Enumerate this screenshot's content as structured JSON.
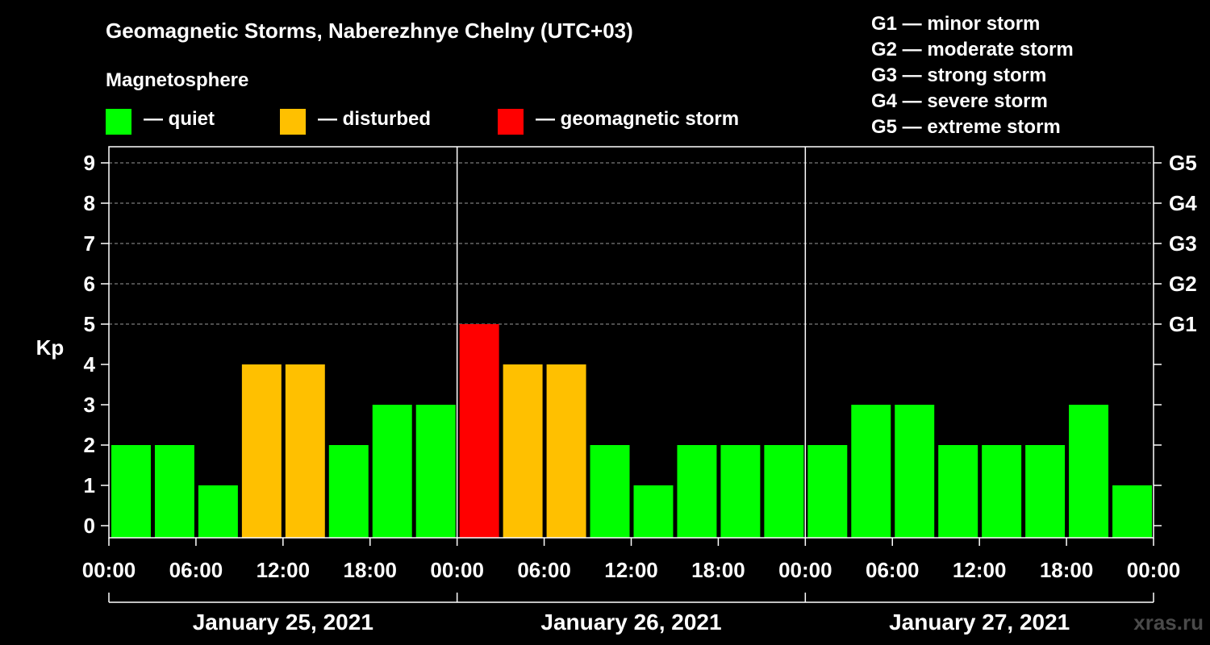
{
  "chart_data": {
    "type": "bar",
    "title": "Geomagnetic Storms, Naberezhnye Chelny (UTC+03)",
    "subtitle": "Magnetosphere",
    "ylabel": "Kp",
    "ylim": [
      0,
      9
    ],
    "yticks": [
      "0",
      "1",
      "2",
      "3",
      "4",
      "5",
      "6",
      "7",
      "8",
      "9"
    ],
    "right_ticks": [
      {
        "kp": 5,
        "label": "G1"
      },
      {
        "kp": 6,
        "label": "G2"
      },
      {
        "kp": 7,
        "label": "G3"
      },
      {
        "kp": 8,
        "label": "G4"
      },
      {
        "kp": 9,
        "label": "G5"
      }
    ],
    "xticks": [
      "00:00",
      "06:00",
      "12:00",
      "18:00",
      "00:00",
      "06:00",
      "12:00",
      "18:00",
      "00:00",
      "06:00",
      "12:00",
      "18:00",
      "00:00"
    ],
    "days": [
      "January 25, 2021",
      "January 26, 2021",
      "January 27, 2021"
    ],
    "interval_hours": 3,
    "values": [
      2,
      2,
      1,
      4,
      4,
      2,
      3,
      3,
      5,
      4,
      4,
      2,
      1,
      2,
      2,
      2,
      2,
      3,
      3,
      2,
      2,
      2,
      3,
      1
    ],
    "legend": [
      {
        "label": "— quiet",
        "color": "#00ff00"
      },
      {
        "label": "— disturbed",
        "color": "#ffc000"
      },
      {
        "label": "— geomagnetic storm",
        "color": "#ff0000"
      }
    ],
    "scale_legend": [
      "G1 — minor storm",
      "G2 — moderate storm",
      "G3 — strong storm",
      "G4 — severe storm",
      "G5 — extreme storm"
    ],
    "colors": {
      "quiet": "#00ff00",
      "disturbed": "#ffc000",
      "storm": "#ff0000"
    }
  },
  "watermark": "xras.ru"
}
